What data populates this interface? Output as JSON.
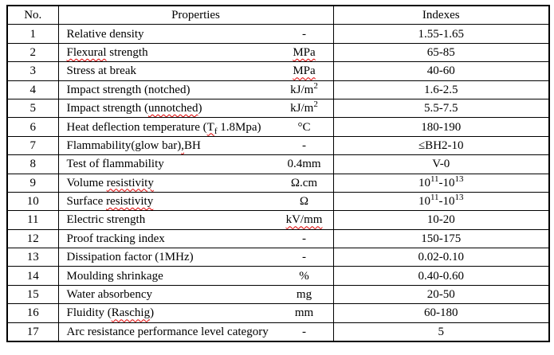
{
  "table": {
    "headers": {
      "no": "No.",
      "properties": "Properties",
      "indexes": "Indexes"
    },
    "rows": [
      {
        "no": "1",
        "property": [
          {
            "t": "Relative density"
          }
        ],
        "unit": [
          {
            "t": "-"
          }
        ],
        "index": [
          {
            "t": "1.55-1.65"
          }
        ]
      },
      {
        "no": "2",
        "property": [
          {
            "t": "Flexural",
            "style": "squiggle"
          },
          {
            "t": " strength"
          }
        ],
        "unit": [
          {
            "t": "MPa",
            "style": "squiggle"
          }
        ],
        "index": [
          {
            "t": "65-85"
          }
        ]
      },
      {
        "no": "3",
        "property": [
          {
            "t": "Stress at break"
          }
        ],
        "unit": [
          {
            "t": "MPa",
            "style": "squiggle"
          }
        ],
        "index": [
          {
            "t": "40-60"
          }
        ]
      },
      {
        "no": "4",
        "property": [
          {
            "t": "Impact strength (notched)"
          }
        ],
        "unit": [
          {
            "t": "kJ/m"
          },
          {
            "t": "2",
            "style": "sup"
          }
        ],
        "index": [
          {
            "t": "1.6-2.5"
          }
        ]
      },
      {
        "no": "5",
        "property": [
          {
            "t": "Impact strength ("
          },
          {
            "t": "unnotched",
            "style": "squiggle"
          },
          {
            "t": ")"
          }
        ],
        "unit": [
          {
            "t": "kJ/m"
          },
          {
            "t": "2",
            "style": "sup"
          }
        ],
        "index": [
          {
            "t": "5.5-7.5"
          }
        ]
      },
      {
        "no": "6",
        "property": [
          {
            "t": "Heat deflection temperature ("
          },
          {
            "t": "T",
            "style": "squiggle"
          },
          {
            "t": "f",
            "style": "sub squiggle"
          },
          {
            "t": " 1.8Mpa)"
          }
        ],
        "unit": [
          {
            "t": "°C"
          }
        ],
        "index": [
          {
            "t": "180-190"
          }
        ]
      },
      {
        "no": "7",
        "property": [
          {
            "t": "Flammability(glow bar)"
          },
          {
            "t": ",",
            "style": "squiggle"
          },
          {
            "t": "BH"
          }
        ],
        "unit": [
          {
            "t": "-"
          }
        ],
        "index": [
          {
            "t": "≤BH2-10"
          }
        ]
      },
      {
        "no": "8",
        "property": [
          {
            "t": "Test of flammability"
          }
        ],
        "unit": [
          {
            "t": "0.4mm"
          }
        ],
        "index": [
          {
            "t": "V-0"
          }
        ]
      },
      {
        "no": "9",
        "property": [
          {
            "t": "Volume "
          },
          {
            "t": "resistivity",
            "style": "squiggle"
          }
        ],
        "unit": [
          {
            "t": "Ω.cm"
          }
        ],
        "index": [
          {
            "t": "10"
          },
          {
            "t": "11",
            "style": "sup"
          },
          {
            "t": "-10"
          },
          {
            "t": "13",
            "style": "sup"
          }
        ]
      },
      {
        "no": "10",
        "property": [
          {
            "t": "Surface "
          },
          {
            "t": "resistivity",
            "style": "squiggle"
          }
        ],
        "unit": [
          {
            "t": "Ω"
          }
        ],
        "index": [
          {
            "t": "10"
          },
          {
            "t": "11",
            "style": "sup"
          },
          {
            "t": "-10"
          },
          {
            "t": "13",
            "style": "sup"
          }
        ]
      },
      {
        "no": "11",
        "property": [
          {
            "t": "Electric strength"
          }
        ],
        "unit": [
          {
            "t": "kV/mm",
            "style": "squiggle"
          }
        ],
        "index": [
          {
            "t": "10-20"
          }
        ]
      },
      {
        "no": "12",
        "property": [
          {
            "t": "Proof tracking index"
          }
        ],
        "unit": [
          {
            "t": "-"
          }
        ],
        "index": [
          {
            "t": "150-175"
          }
        ]
      },
      {
        "no": "13",
        "property": [
          {
            "t": "Dissipation factor (1MHz)"
          }
        ],
        "unit": [
          {
            "t": "-"
          }
        ],
        "index": [
          {
            "t": "0.02-0.10"
          }
        ]
      },
      {
        "no": "14",
        "property": [
          {
            "t": "Moulding shrinkage"
          }
        ],
        "unit": [
          {
            "t": "%"
          }
        ],
        "index": [
          {
            "t": "0.40-0.60"
          }
        ]
      },
      {
        "no": "15",
        "property": [
          {
            "t": "Water absorbency"
          }
        ],
        "unit": [
          {
            "t": "mg"
          }
        ],
        "index": [
          {
            "t": "20-50"
          }
        ]
      },
      {
        "no": "16",
        "property": [
          {
            "t": "Fluidity ("
          },
          {
            "t": "Raschig",
            "style": "squiggle"
          },
          {
            "t": ")"
          }
        ],
        "unit": [
          {
            "t": "mm"
          }
        ],
        "index": [
          {
            "t": "60-180"
          }
        ]
      },
      {
        "no": "17",
        "property": [
          {
            "t": "Arc resistance performance level category"
          }
        ],
        "unit": [
          {
            "t": "-"
          }
        ],
        "index": [
          {
            "t": "5"
          }
        ]
      }
    ]
  },
  "colors": {
    "border": "#000000",
    "text": "#000000",
    "squiggle": "#e00000",
    "background": "#ffffff"
  }
}
